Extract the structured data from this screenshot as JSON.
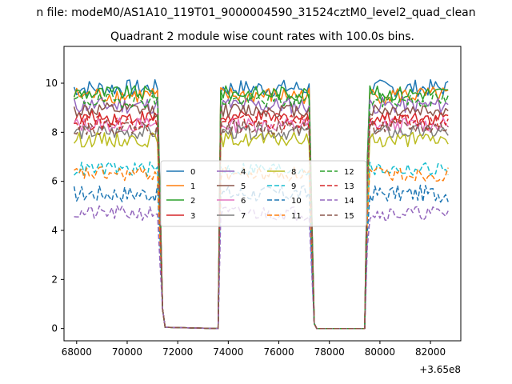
{
  "figure": {
    "suptitle": "n file: modeM0/AS1A10_119T01_9000004590_31524cztM0_level2_quad_clean"
  },
  "chart_data": {
    "type": "line",
    "title": "Quadrant 2 module wise count rates with 100.0s bins.",
    "xlabel": "",
    "ylabel": "",
    "x_offset_label": "+3.65e8",
    "xlim": [
      67500,
      83200
    ],
    "ylim": [
      -0.5,
      11.5
    ],
    "x_ticks": [
      68000,
      70000,
      72000,
      74000,
      76000,
      78000,
      80000,
      82000
    ],
    "y_ticks": [
      0,
      2,
      4,
      6,
      8,
      10
    ],
    "grid": false,
    "legend": {
      "placement": "center",
      "columns": 4
    },
    "segments": [
      {
        "start": 67900,
        "end": 71200,
        "fall_end": 71500
      },
      {
        "start": 73700,
        "end": 77200,
        "rise_start": 73600,
        "fall_end": 77500
      },
      {
        "start": 79600,
        "end": 82700,
        "rise_start": 79500
      }
    ],
    "zero_start": 71600,
    "zero_end": 73600,
    "series": [
      {
        "name": "0",
        "level": 9.8,
        "noise": 0.35,
        "color": "#1f77b4",
        "dash": "solid"
      },
      {
        "name": "1",
        "level": 9.5,
        "noise": 0.35,
        "color": "#ff7f0e",
        "dash": "solid"
      },
      {
        "name": "2",
        "level": 9.6,
        "noise": 0.3,
        "color": "#2ca02c",
        "dash": "solid"
      },
      {
        "name": "3",
        "level": 8.6,
        "noise": 0.3,
        "color": "#d62728",
        "dash": "solid"
      },
      {
        "name": "4",
        "level": 9.1,
        "noise": 0.35,
        "color": "#9467bd",
        "dash": "solid"
      },
      {
        "name": "5",
        "level": 8.9,
        "noise": 0.3,
        "color": "#8c564b",
        "dash": "solid"
      },
      {
        "name": "6",
        "level": 8.3,
        "noise": 0.3,
        "color": "#e377c2",
        "dash": "solid"
      },
      {
        "name": "7",
        "level": 8.0,
        "noise": 0.3,
        "color": "#7f7f7f",
        "dash": "solid"
      },
      {
        "name": "8",
        "level": 7.7,
        "noise": 0.3,
        "color": "#bcbd22",
        "dash": "solid"
      },
      {
        "name": "9",
        "level": 6.5,
        "noise": 0.3,
        "color": "#17becf",
        "dash": "dashed"
      },
      {
        "name": "10",
        "level": 5.5,
        "noise": 0.35,
        "color": "#1f77b4",
        "dash": "dashed"
      },
      {
        "name": "11",
        "level": 6.3,
        "noise": 0.3,
        "color": "#ff7f0e",
        "dash": "dashed"
      },
      {
        "name": "12",
        "level": 9.3,
        "noise": 0.3,
        "color": "#2ca02c",
        "dash": "dashed"
      },
      {
        "name": "13",
        "level": 8.4,
        "noise": 0.3,
        "color": "#d62728",
        "dash": "dashed"
      },
      {
        "name": "14",
        "level": 4.7,
        "noise": 0.3,
        "color": "#9467bd",
        "dash": "dashed"
      },
      {
        "name": "15",
        "level": 8.2,
        "noise": 0.3,
        "color": "#8c564b",
        "dash": "dashed"
      }
    ]
  }
}
